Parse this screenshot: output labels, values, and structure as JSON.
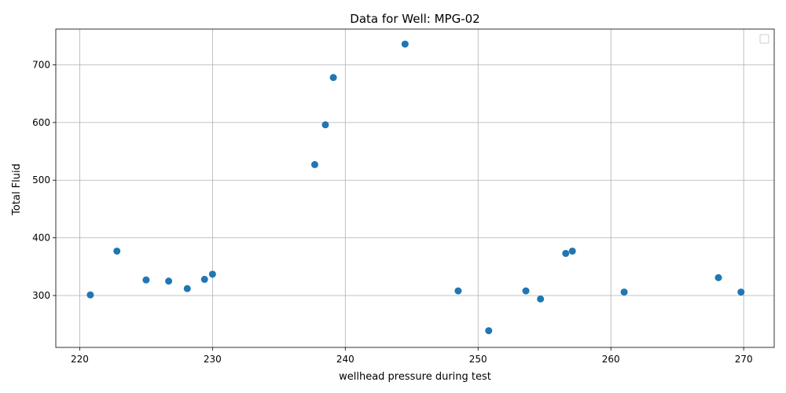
{
  "chart_data": {
    "type": "scatter",
    "title": "Data for Well: MPG-02",
    "xlabel": "wellhead pressure during test",
    "ylabel": "Total Fluid",
    "xlim": [
      218.2,
      272.3
    ],
    "ylim": [
      210,
      762
    ],
    "xticks": [
      220,
      230,
      240,
      250,
      260,
      270
    ],
    "yticks": [
      300,
      400,
      500,
      600,
      700
    ],
    "grid": true,
    "legend": "top-right",
    "marker_color": "#1f77b4",
    "points": [
      {
        "x": 220.8,
        "y": 301
      },
      {
        "x": 222.8,
        "y": 377
      },
      {
        "x": 225.0,
        "y": 327
      },
      {
        "x": 226.7,
        "y": 325
      },
      {
        "x": 228.1,
        "y": 312
      },
      {
        "x": 229.4,
        "y": 328
      },
      {
        "x": 230.0,
        "y": 337
      },
      {
        "x": 237.7,
        "y": 527
      },
      {
        "x": 238.5,
        "y": 596
      },
      {
        "x": 239.1,
        "y": 678
      },
      {
        "x": 244.5,
        "y": 736
      },
      {
        "x": 248.5,
        "y": 308
      },
      {
        "x": 250.8,
        "y": 239
      },
      {
        "x": 253.6,
        "y": 308
      },
      {
        "x": 254.7,
        "y": 294
      },
      {
        "x": 256.6,
        "y": 373
      },
      {
        "x": 257.1,
        "y": 377
      },
      {
        "x": 261.0,
        "y": 306
      },
      {
        "x": 268.1,
        "y": 331
      },
      {
        "x": 269.8,
        "y": 306
      }
    ]
  }
}
